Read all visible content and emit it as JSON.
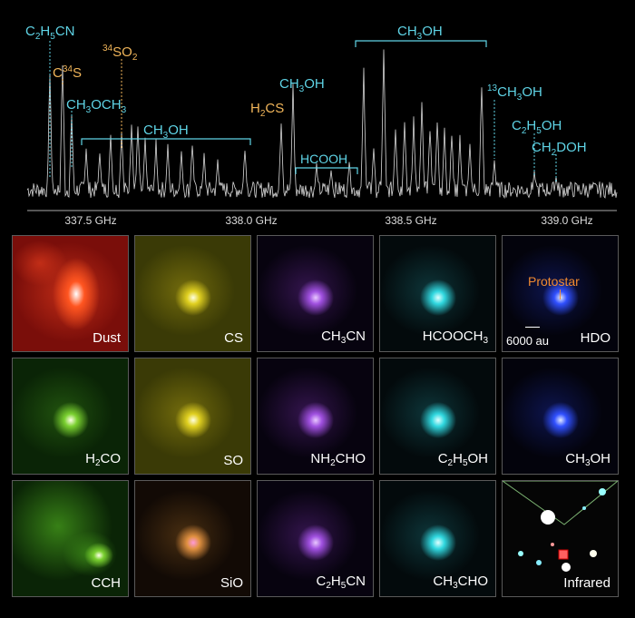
{
  "spectrum": {
    "axis_ticks": [
      "337.5 GHz",
      "338.0 GHz",
      "338.5 GHz",
      "339.0 GHz"
    ],
    "line_labels": {
      "c2h5cn": {
        "base": "C",
        "s1": "2",
        "m1": "H",
        "s2": "5",
        "m2": "CN"
      },
      "c34s": {
        "pre": "C",
        "sup": "34",
        "post": "S"
      },
      "so2": {
        "sup": "34",
        "mid": "SO",
        "sub": "2"
      },
      "ch3och3": {
        "a": "CH",
        "s1": "3",
        "b": "OCH",
        "s2": "3"
      },
      "ch3oh_band1": {
        "a": "CH",
        "s": "3",
        "b": "OH"
      },
      "h2cs": {
        "a": "H",
        "s": "2",
        "b": "CS"
      },
      "ch3oh_peak": {
        "a": "CH",
        "s": "3",
        "b": "OH"
      },
      "hcooh": "HCOOH",
      "ch3oh_band2": {
        "a": "CH",
        "s": "3",
        "b": "OH"
      },
      "c13h3oh": {
        "sup": "13",
        "a": "CH",
        "s": "3",
        "b": "OH"
      },
      "c2h5oh": {
        "a": "C",
        "s1": "2",
        "b": "H",
        "s2": "5",
        "c": "OH"
      },
      "ch2doh": {
        "a": "CH",
        "s": "2",
        "b": "DOH"
      }
    }
  },
  "panels": [
    {
      "label": [
        "Dust"
      ],
      "colormap": "dust"
    },
    {
      "label": [
        "CS"
      ],
      "colormap": "yellow"
    },
    {
      "label": [
        "CH",
        "3",
        "CN"
      ],
      "colormap": "purple"
    },
    {
      "label": [
        "HCOOCH",
        "3"
      ],
      "colormap": "cyan"
    },
    {
      "label": [
        "HDO"
      ],
      "colormap": "blue"
    },
    {
      "label": [
        "H",
        "2",
        "CO"
      ],
      "colormap": "green"
    },
    {
      "label": [
        "SO"
      ],
      "colormap": "yellow"
    },
    {
      "label": [
        "NH",
        "2",
        "CHO"
      ],
      "colormap": "purple"
    },
    {
      "label": [
        "C",
        "2",
        "H",
        "5",
        "OH"
      ],
      "colormap": "cyan"
    },
    {
      "label": [
        "CH",
        "3",
        "OH"
      ],
      "colormap": "blue"
    },
    {
      "label": [
        "CCH"
      ],
      "colormap": "green"
    },
    {
      "label": [
        "SiO"
      ],
      "colormap": "orange"
    },
    {
      "label": [
        "C",
        "2",
        "H",
        "5",
        "CN"
      ],
      "colormap": "purple"
    },
    {
      "label": [
        "CH",
        "3",
        "CHO"
      ],
      "colormap": "cyan"
    },
    {
      "label": [
        "Infrared"
      ],
      "colormap": "infrared"
    }
  ],
  "annotations": {
    "protostar": "Protostar",
    "scalebar": "6000 au"
  },
  "colors": {
    "cyan_label": "#5fd4e6",
    "orange_label": "#f0b55a",
    "protostar_orange": "#f08a30",
    "spectrum_trace": "#d8d8d8"
  }
}
